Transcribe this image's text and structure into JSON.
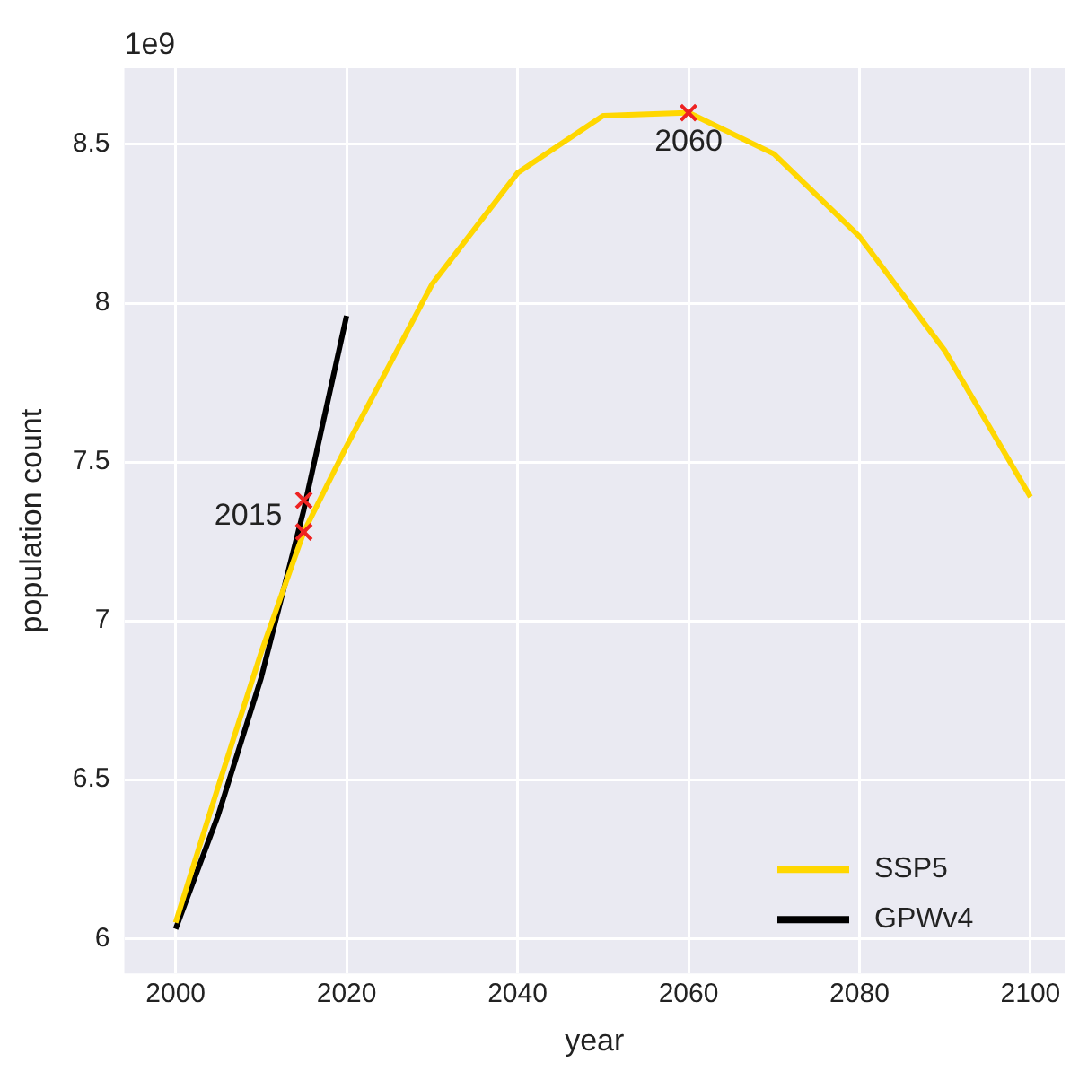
{
  "chart_data": {
    "type": "line",
    "xlabel": "year",
    "ylabel": "population count",
    "xlim": [
      1994,
      2104
    ],
    "xticks": [
      2000,
      2020,
      2040,
      2060,
      2080,
      2100
    ],
    "ylim": [
      5.89,
      8.74
    ],
    "yticks": [
      6,
      6.5,
      7,
      7.5,
      8,
      8.5
    ],
    "grid": true,
    "legend": "bottom right",
    "marker": "none",
    "line_style": "solid",
    "series": [
      {
        "name": "SSP5",
        "color": "#ffd700",
        "x": [
          2000,
          2005,
          2010,
          2015,
          2020,
          2030,
          2040,
          2050,
          2060,
          2070,
          2080,
          2090,
          2100
        ],
        "values": [
          6.05,
          6.48,
          6.9,
          7.28,
          7.55,
          8.06,
          8.41,
          8.59,
          8.6,
          8.47,
          8.21,
          7.85,
          7.39
        ]
      },
      {
        "name": "GPWv4",
        "color": "#000000",
        "x": [
          2000,
          2005,
          2010,
          2015,
          2020
        ],
        "values": [
          6.03,
          6.39,
          6.82,
          7.35,
          7.96
        ]
      },
      {
        "type": "scatter",
        "color": "#ee2222",
        "marker": "cross",
        "x": [
          2015,
          2015,
          2060
        ],
        "values": [
          7.38,
          7.28,
          8.6
        ]
      }
    ],
    "annotations": [
      "1e9",
      {
        "text": "2015",
        "x": 2015,
        "y": 7.33
      },
      {
        "text": "2060",
        "x": 2060,
        "y": 8.6
      }
    ]
  }
}
